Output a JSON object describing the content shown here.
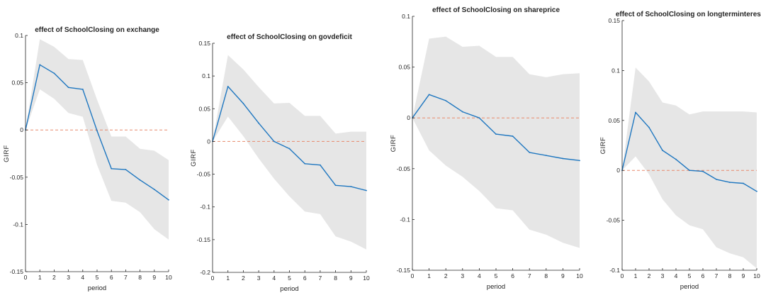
{
  "chart_data": [
    {
      "type": "line",
      "title": "effect of SchoolClosing on exchange",
      "xlabel": "period",
      "ylabel": "GIRF",
      "xlim": [
        0,
        10
      ],
      "ylim": [
        -0.15,
        0.1
      ],
      "xticks": [
        0,
        1,
        2,
        3,
        4,
        5,
        6,
        7,
        8,
        9,
        10
      ],
      "yticks": [
        -0.15,
        -0.1,
        -0.05,
        0,
        0.05,
        0.1
      ],
      "ytick_labels": [
        "-0.15",
        "-0.1",
        "-0.05",
        "0",
        "0.05",
        "0.1"
      ],
      "x": [
        0,
        1,
        2,
        3,
        4,
        5,
        6,
        7,
        8,
        9,
        10
      ],
      "girf": [
        0,
        0.069,
        0.06,
        0.045,
        0.043,
        -0.001,
        -0.041,
        -0.042,
        -0.053,
        -0.063,
        -0.074
      ],
      "upper": [
        0,
        0.096,
        0.088,
        0.075,
        0.074,
        0.032,
        -0.007,
        -0.007,
        -0.02,
        -0.022,
        -0.032
      ],
      "lower": [
        0,
        0.043,
        0.033,
        0.018,
        0.014,
        -0.037,
        -0.075,
        -0.077,
        -0.087,
        -0.105,
        -0.116
      ],
      "zero_line": 0,
      "colors": {
        "line": "#1f77c0",
        "band": "#e6e6e6",
        "zero": "#e8896b"
      }
    },
    {
      "type": "line",
      "title": "effect of SchoolClosing on govdeficit",
      "xlabel": "period",
      "ylabel": "GIRF",
      "xlim": [
        0,
        10
      ],
      "ylim": [
        -0.2,
        0.15
      ],
      "xticks": [
        0,
        1,
        2,
        3,
        4,
        5,
        6,
        7,
        8,
        9,
        10
      ],
      "yticks": [
        -0.2,
        -0.15,
        -0.1,
        -0.05,
        0,
        0.05,
        0.1,
        0.15
      ],
      "ytick_labels": [
        "-0.2",
        "-0.15",
        "-0.1",
        "-0.05",
        "0",
        "0.05",
        "0.1",
        "0.15"
      ],
      "x": [
        0,
        1,
        2,
        3,
        4,
        5,
        6,
        7,
        8,
        9,
        10
      ],
      "girf": [
        0,
        0.084,
        0.058,
        0.028,
        0.0,
        -0.011,
        -0.034,
        -0.036,
        -0.067,
        -0.069,
        -0.075
      ],
      "upper": [
        0,
        0.132,
        0.11,
        0.083,
        0.058,
        0.059,
        0.039,
        0.039,
        0.012,
        0.015,
        0.015
      ],
      "lower": [
        0,
        0.038,
        0.008,
        -0.026,
        -0.057,
        -0.084,
        -0.107,
        -0.111,
        -0.145,
        -0.153,
        -0.165
      ],
      "zero_line": 0,
      "colors": {
        "line": "#1f77c0",
        "band": "#e6e6e6",
        "zero": "#e8896b"
      }
    },
    {
      "type": "line",
      "title": "effect of SchoolClosing on shareprice",
      "xlabel": "period",
      "ylabel": "GIRF",
      "xlim": [
        0,
        10
      ],
      "ylim": [
        -0.15,
        0.1
      ],
      "xticks": [
        0,
        1,
        2,
        3,
        4,
        5,
        6,
        7,
        8,
        9,
        10
      ],
      "yticks": [
        -0.15,
        -0.1,
        -0.05,
        0,
        0.05,
        0.1
      ],
      "ytick_labels": [
        "-0.15",
        "-0.1",
        "-0.05",
        "0",
        "0.05",
        "0.1"
      ],
      "x": [
        0,
        1,
        2,
        3,
        4,
        5,
        6,
        7,
        8,
        9,
        10
      ],
      "girf": [
        0,
        0.023,
        0.017,
        0.006,
        0.0,
        -0.016,
        -0.018,
        -0.034,
        -0.037,
        -0.04,
        -0.042
      ],
      "upper": [
        0,
        0.078,
        0.08,
        0.07,
        0.071,
        0.06,
        0.06,
        0.043,
        0.04,
        0.043,
        0.044
      ],
      "lower": [
        0,
        -0.032,
        -0.047,
        -0.058,
        -0.072,
        -0.089,
        -0.091,
        -0.11,
        -0.115,
        -0.123,
        -0.128
      ],
      "zero_line": 0,
      "colors": {
        "line": "#1f77c0",
        "band": "#e6e6e6",
        "zero": "#e8896b"
      }
    },
    {
      "type": "line",
      "title": "effect of SchoolClosing on longterminterest",
      "xlabel": "period",
      "ylabel": "GIRF",
      "xlim": [
        0,
        10
      ],
      "ylim": [
        -0.1,
        0.15
      ],
      "xticks": [
        0,
        1,
        2,
        3,
        4,
        5,
        6,
        7,
        8,
        9,
        10
      ],
      "yticks": [
        -0.1,
        -0.05,
        0,
        0.05,
        0.1,
        0.15
      ],
      "ytick_labels": [
        "-0.1",
        "-0.05",
        "0",
        "0.05",
        "0.1",
        "0.15"
      ],
      "x": [
        0,
        1,
        2,
        3,
        4,
        5,
        6,
        7,
        8,
        9,
        10
      ],
      "girf": [
        0,
        0.058,
        0.043,
        0.02,
        0.011,
        0.0,
        -0.001,
        -0.009,
        -0.012,
        -0.013,
        -0.021
      ],
      "upper": [
        0,
        0.103,
        0.089,
        0.068,
        0.065,
        0.056,
        0.059,
        0.059,
        0.059,
        0.059,
        0.058
      ],
      "lower": [
        0,
        0.014,
        -0.004,
        -0.029,
        -0.045,
        -0.055,
        -0.059,
        -0.077,
        -0.083,
        -0.087,
        -0.098
      ],
      "zero_line": 0,
      "colors": {
        "line": "#1f77c0",
        "band": "#e6e6e6",
        "zero": "#e8896b"
      }
    }
  ]
}
